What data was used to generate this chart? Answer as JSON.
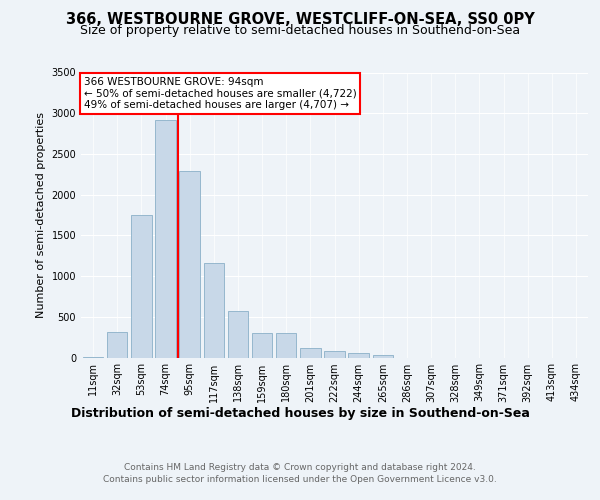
{
  "title": "366, WESTBOURNE GROVE, WESTCLIFF-ON-SEA, SS0 0PY",
  "subtitle": "Size of property relative to semi-detached houses in Southend-on-Sea",
  "xlabel": "Distribution of semi-detached houses by size in Southend-on-Sea",
  "ylabel": "Number of semi-detached properties",
  "bar_labels": [
    "11sqm",
    "32sqm",
    "53sqm",
    "74sqm",
    "95sqm",
    "117sqm",
    "138sqm",
    "159sqm",
    "180sqm",
    "201sqm",
    "222sqm",
    "244sqm",
    "265sqm",
    "286sqm",
    "307sqm",
    "328sqm",
    "349sqm",
    "371sqm",
    "392sqm",
    "413sqm",
    "434sqm"
  ],
  "bar_values": [
    10,
    310,
    1750,
    2920,
    2290,
    1155,
    565,
    295,
    295,
    120,
    80,
    55,
    25,
    0,
    0,
    0,
    0,
    0,
    0,
    0,
    0
  ],
  "bar_color": "#c8d8e8",
  "bar_edge_color": "#8ab0c8",
  "vline_color": "red",
  "annotation_text": "366 WESTBOURNE GROVE: 94sqm\n← 50% of semi-detached houses are smaller (4,722)\n49% of semi-detached houses are larger (4,707) →",
  "annotation_box_color": "#ffffff",
  "annotation_box_edge": "red",
  "ylim": [
    0,
    3500
  ],
  "yticks": [
    0,
    500,
    1000,
    1500,
    2000,
    2500,
    3000,
    3500
  ],
  "bg_color": "#eef3f8",
  "footer": "Contains HM Land Registry data © Crown copyright and database right 2024.\nContains public sector information licensed under the Open Government Licence v3.0.",
  "title_fontsize": 10.5,
  "subtitle_fontsize": 9,
  "xlabel_fontsize": 9,
  "ylabel_fontsize": 8,
  "tick_fontsize": 7,
  "footer_fontsize": 6.5,
  "annotation_fontsize": 7.5
}
